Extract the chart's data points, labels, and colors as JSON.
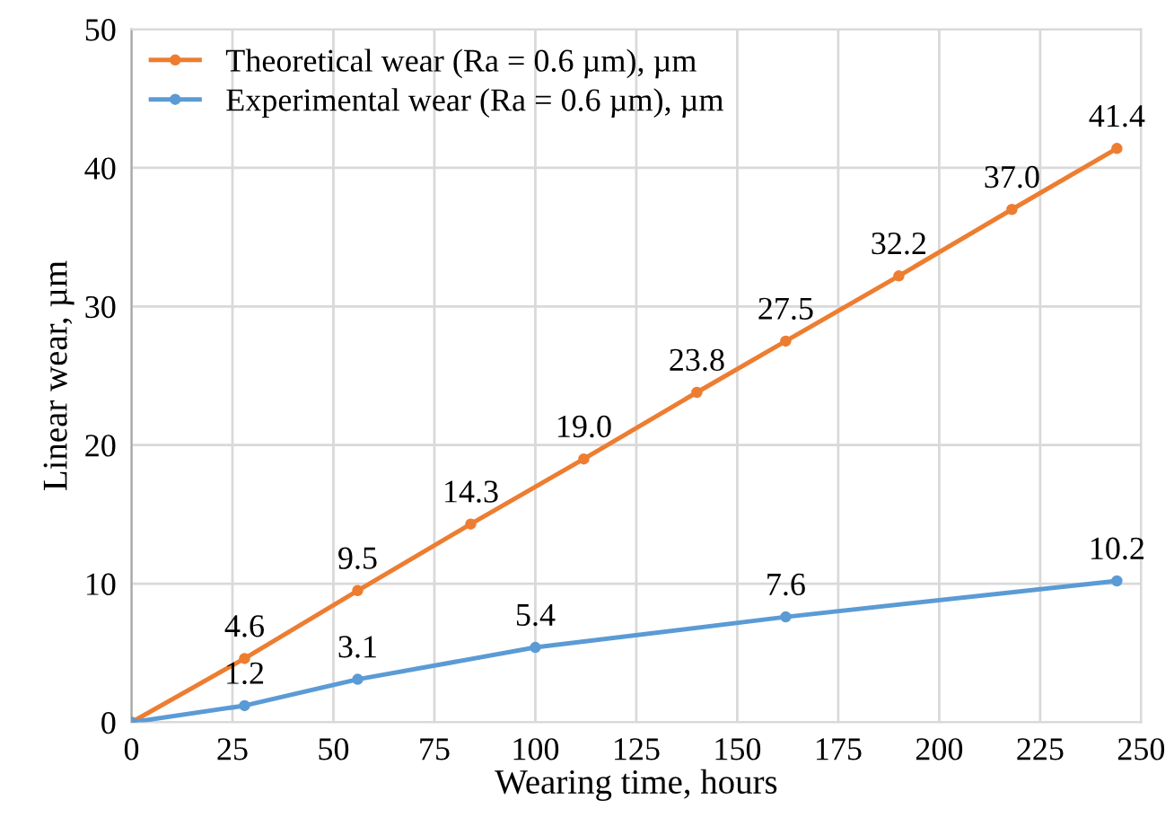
{
  "chart_data": {
    "type": "line",
    "xlabel": "Wearing time, hours",
    "ylabel": "Linear wear, µm",
    "xlim": [
      0,
      250
    ],
    "xticks": [
      0,
      25,
      50,
      75,
      100,
      125,
      150,
      175,
      200,
      225,
      250
    ],
    "ylim": [
      0,
      50
    ],
    "yticks": [
      0,
      10,
      20,
      30,
      40,
      50
    ],
    "grid": true,
    "legend": "top left",
    "marker": "circle",
    "series": [
      {
        "name": "Theoretical wear (Ra = 0.6 µm), µm",
        "color": "#ed7d31",
        "x": [
          0,
          28,
          56,
          84,
          112,
          140,
          162,
          190,
          218,
          244
        ],
        "values": [
          0,
          4.6,
          9.5,
          14.3,
          19.0,
          23.8,
          27.5,
          32.2,
          37.0,
          41.4
        ],
        "value_labels": [
          null,
          "4.6",
          "9.5",
          "14.3",
          "19.0",
          "23.8",
          "27.5",
          "32.2",
          "37.0",
          "41.4"
        ]
      },
      {
        "name": "Experimental wear (Ra = 0.6 µm), µm",
        "color": "#5b9bd5",
        "x": [
          0,
          28,
          56,
          100,
          162,
          244
        ],
        "values": [
          0,
          1.2,
          3.1,
          5.4,
          7.6,
          10.2
        ],
        "value_labels": [
          null,
          "1.2",
          "3.1",
          "5.4",
          "7.6",
          "10.2"
        ]
      }
    ]
  }
}
